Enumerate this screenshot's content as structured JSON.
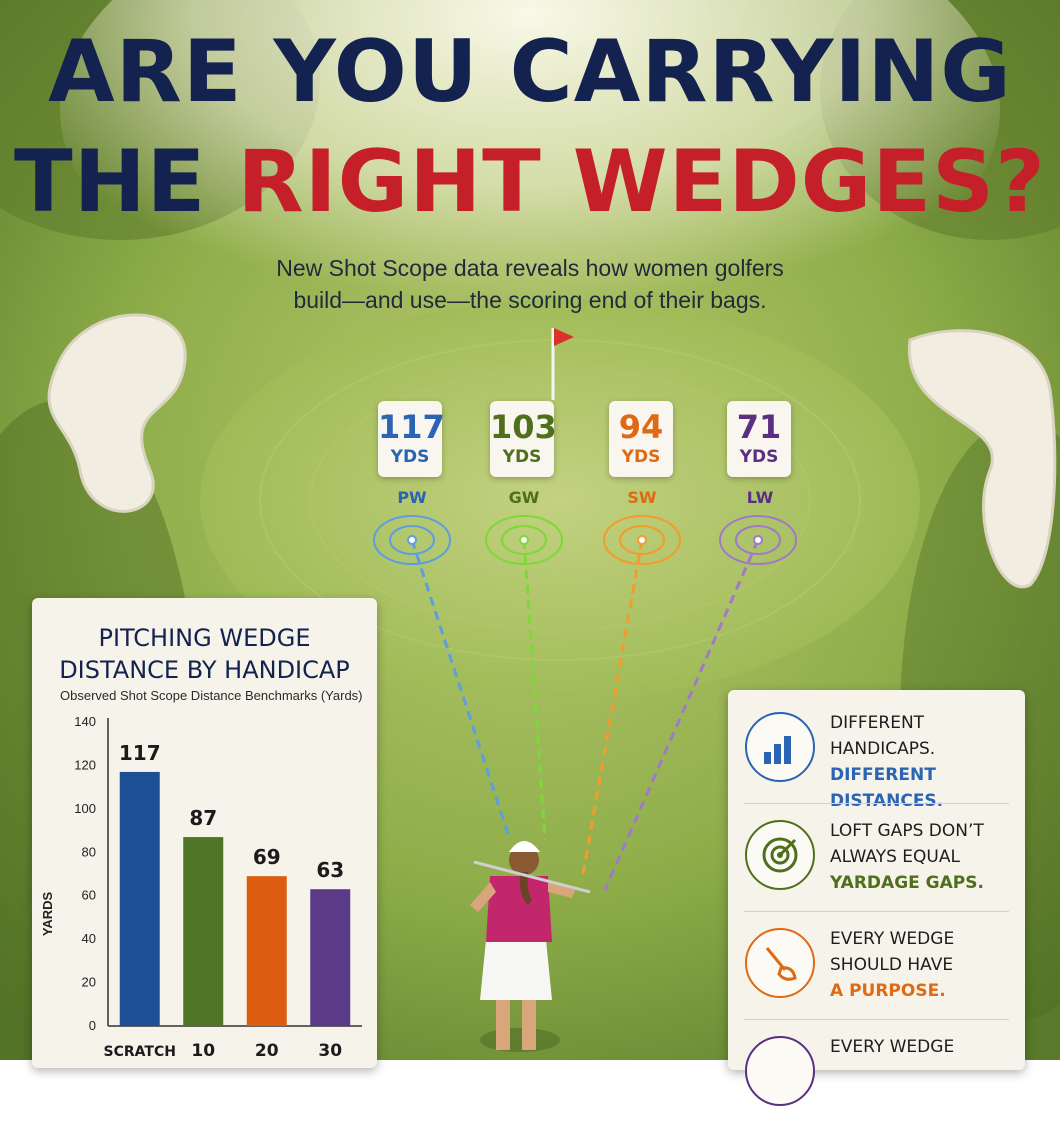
{
  "headline": {
    "line1": "ARE YOU CARRYING",
    "line2_prefix": "THE",
    "line2_highlight": "RIGHT WEDGES?"
  },
  "subtitle": {
    "line1": "New Shot Scope data reveals how women golfers",
    "line2": "build—and use—the scoring end of their bags."
  },
  "wedges": [
    {
      "club": "PW",
      "yards": "117",
      "unit": "YDS",
      "color": "#2b63b5"
    },
    {
      "club": "GW",
      "yards": "103",
      "unit": "YDS",
      "color": "#4f6f1c"
    },
    {
      "club": "SW",
      "yards": "94",
      "unit": "YDS",
      "color": "#e06a14"
    },
    {
      "club": "LW",
      "yards": "71",
      "unit": "YDS",
      "color": "#5a2f82"
    }
  ],
  "chart_data": {
    "type": "bar",
    "title_line1": "PITCHING WEDGE",
    "title_line2": "DISTANCE BY HANDICAP",
    "subtitle": "Observed Shot Scope Distance Benchmarks (Yards)",
    "ylabel": "YARDS",
    "xlabel": "",
    "ylim": [
      0,
      140
    ],
    "yticks": [
      0,
      20,
      40,
      60,
      80,
      100,
      120,
      140
    ],
    "categories": [
      "SCRATCH",
      "10",
      "20",
      "30"
    ],
    "values": [
      117,
      87,
      69,
      63
    ],
    "colors": [
      "#1d4f94",
      "#4f7526",
      "#dc5d10",
      "#5b3a88"
    ],
    "grid": false
  },
  "info": [
    {
      "line1": "DIFFERENT",
      "line2": "HANDICAPS.",
      "highlight": "DIFFERENT DISTANCES.",
      "icon": "bar-chart-icon",
      "color": "#2b63b5"
    },
    {
      "line1": "LOFT GAPS DON’T",
      "line2": "ALWAYS EQUAL",
      "highlight": "YARDAGE GAPS.",
      "icon": "target-icon",
      "color": "#4f6f1c"
    },
    {
      "line1": "EVERY WEDGE",
      "line2": "SHOULD HAVE",
      "highlight": "A PURPOSE.",
      "icon": "wedge-club-icon",
      "color": "#e06a14"
    },
    {
      "line1": "EVERY WEDGE",
      "line2": "",
      "highlight": "",
      "icon": "wedge-icon",
      "color": "#5a2f82"
    }
  ]
}
